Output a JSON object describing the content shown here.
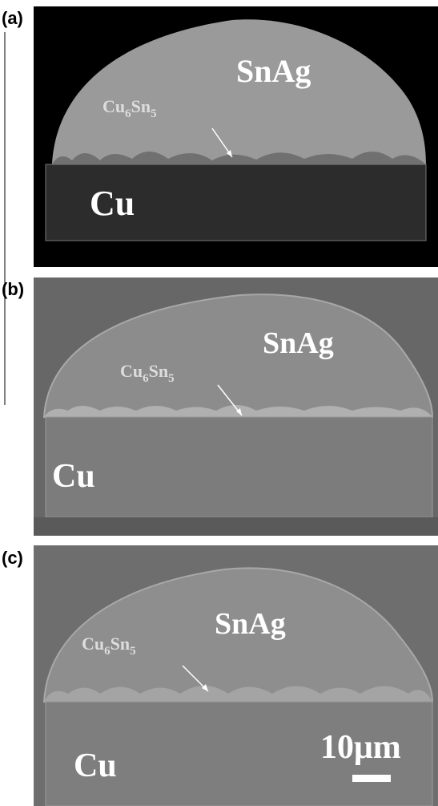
{
  "panels": [
    {
      "label": "(a)",
      "top_phase": "SnAg",
      "imc": {
        "base": "Cu",
        "base_sub": "6",
        "alloy": "Sn",
        "alloy_sub": "5"
      },
      "substrate": "Cu"
    },
    {
      "label": "(b)",
      "top_phase": "SnAg",
      "imc": {
        "base": "Cu",
        "base_sub": "6",
        "alloy": "Sn",
        "alloy_sub": "5"
      },
      "substrate": "Cu"
    },
    {
      "label": "(c)",
      "top_phase": "SnAg",
      "imc": {
        "base": "Cu",
        "base_sub": "6",
        "alloy": "Sn",
        "alloy_sub": "5"
      },
      "substrate": "Cu"
    }
  ],
  "scale_bar": "10μm"
}
